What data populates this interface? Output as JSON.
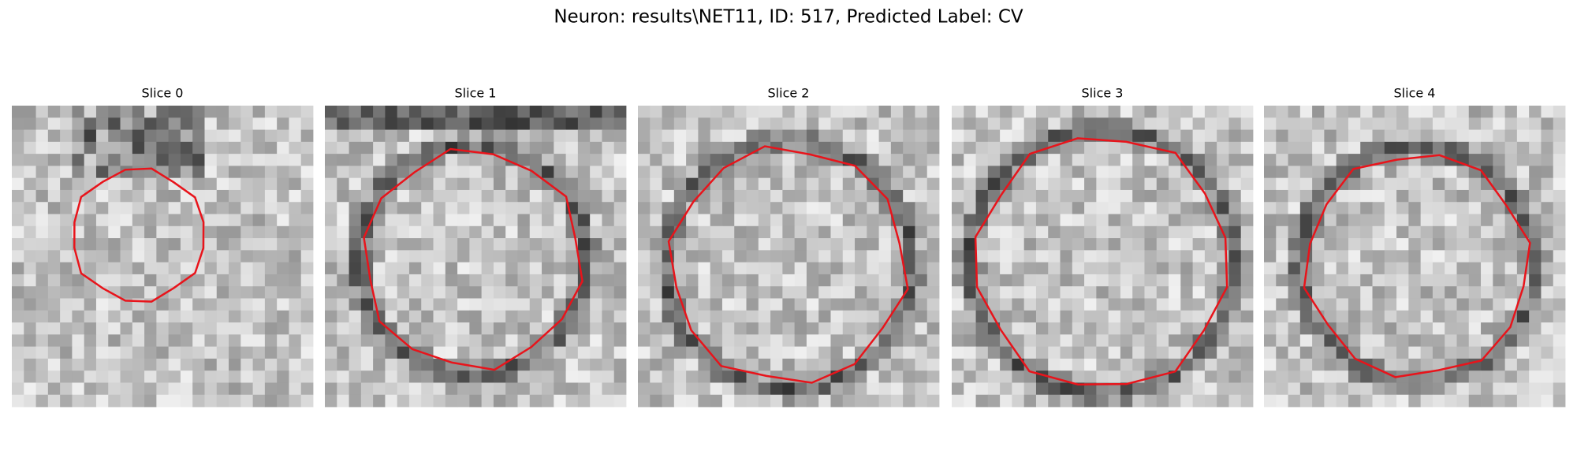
{
  "title": "Neuron: results\\NET11, ID: 517, Predicted Label: CV",
  "panels": [
    {
      "title": "Slice 0"
    },
    {
      "title": "Slice 1"
    },
    {
      "title": "Slice 2"
    },
    {
      "title": "Slice 3"
    },
    {
      "title": "Slice 4"
    }
  ]
}
